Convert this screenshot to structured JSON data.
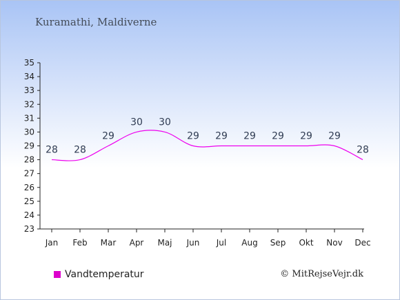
{
  "page": {
    "title": "Kuramathi, Maldiverne",
    "credit": "© MitRejseVejr.dk"
  },
  "colors": {
    "line": "#ee00ee",
    "legend": "#dd00cc",
    "axis": "#222222"
  },
  "chart_data": {
    "type": "line",
    "categories": [
      "Jan",
      "Feb",
      "Mar",
      "Apr",
      "Maj",
      "Jun",
      "Jul",
      "Aug",
      "Sep",
      "Okt",
      "Nov",
      "Dec"
    ],
    "series": [
      {
        "name": "Vandtemperatur",
        "values": [
          28,
          28,
          29,
          30,
          30,
          29,
          29,
          29,
          29,
          29,
          29,
          28
        ]
      }
    ],
    "data_labels": [
      "28",
      "28",
      "29",
      "30",
      "30",
      "29",
      "29",
      "29",
      "29",
      "29",
      "29",
      "28"
    ],
    "ylim": [
      23,
      35
    ],
    "yticks": [
      23,
      24,
      25,
      26,
      27,
      28,
      29,
      30,
      31,
      32,
      33,
      34,
      35
    ],
    "title": "Kuramathi, Maldiverne",
    "xlabel": "",
    "ylabel": "",
    "grid": false,
    "legend": "bottom-left"
  }
}
